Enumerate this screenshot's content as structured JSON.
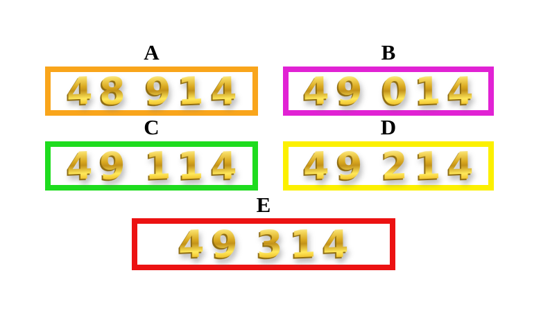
{
  "figure": {
    "background_color": "#FFFFFF",
    "label_color": "#000000",
    "digit_style": "3d-gold",
    "digit_gold_color": "#E8B61E"
  },
  "options": [
    {
      "label": "A",
      "number": "48 914",
      "border_color": "#F9A51B"
    },
    {
      "label": "B",
      "number": "49 014",
      "border_color": "#E122D4"
    },
    {
      "label": "C",
      "number": "49 114",
      "border_color": "#1EDC1E"
    },
    {
      "label": "D",
      "number": "49 214",
      "border_color": "#FCF000"
    },
    {
      "label": "E",
      "number": "49 314",
      "border_color": "#EC1212"
    }
  ]
}
